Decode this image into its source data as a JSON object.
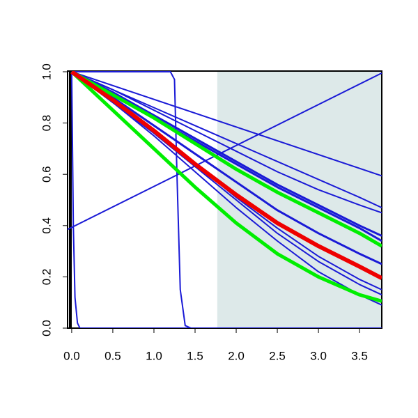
{
  "chart_data": {
    "type": "line",
    "xlim": [
      -0.05,
      3.77
    ],
    "ylim": [
      0,
      1
    ],
    "xticks": [
      {
        "value": 0,
        "label": "0.0"
      },
      0.5,
      {
        "value": 1,
        "label": "1.0"
      },
      1.5,
      {
        "value": 2,
        "label": "2.0"
      },
      2.5,
      {
        "value": 3,
        "label": "3.0"
      },
      3.5
    ],
    "yticks": [
      {
        "value": 0,
        "label": "0.0"
      },
      0.2,
      0.4,
      0.6,
      0.8,
      {
        "value": 1,
        "label": "1.0"
      }
    ],
    "highlight_xrange": [
      1.77,
      3.77
    ],
    "highlight_color": "#dde9e9",
    "series": [
      {
        "color": "#1a1ad6",
        "width": 2,
        "x": [
          0,
          1.2,
          1.25,
          1.28,
          1.32,
          1.38,
          1.45,
          3.77
        ],
        "values": [
          1,
          1,
          0.97,
          0.6,
          0.15,
          0.01,
          0,
          0
        ]
      },
      {
        "color": "#1a1ad6",
        "width": 2,
        "x": [
          0,
          0.01,
          0.02,
          0.04,
          0.07,
          0.1,
          3.77
        ],
        "values": [
          1,
          0.7,
          0.4,
          0.12,
          0.02,
          0,
          0
        ]
      },
      {
        "color": "#1a1ad6",
        "width": 2,
        "x": [
          -0.05,
          3.77
        ],
        "values": [
          0.385,
          0.995
        ]
      },
      {
        "color": "#1a1ad6",
        "width": 2,
        "x": [
          0,
          3.77
        ],
        "values": [
          1,
          0.594
        ]
      },
      {
        "color": "#1a1ad6",
        "width": 2,
        "x": [
          0,
          0.5,
          1,
          1.5,
          2,
          2.5,
          3,
          3.5,
          3.77
        ],
        "values": [
          1,
          0.93,
          0.86,
          0.79,
          0.72,
          0.65,
          0.58,
          0.51,
          0.47
        ]
      },
      {
        "color": "#1a1ad6",
        "width": 2,
        "x": [
          0,
          0.5,
          1,
          1.5,
          2,
          2.5,
          3,
          3.5,
          3.77
        ],
        "values": [
          1,
          0.93,
          0.85,
          0.77,
          0.69,
          0.61,
          0.54,
          0.48,
          0.45
        ]
      },
      {
        "color": "#1a1ad6",
        "width": 3,
        "x": [
          0,
          0.5,
          1,
          1.5,
          2,
          2.5,
          3,
          3.5,
          3.77
        ],
        "values": [
          1,
          0.92,
          0.83,
          0.74,
          0.65,
          0.56,
          0.48,
          0.4,
          0.36
        ]
      },
      {
        "color": "#1a1ad6",
        "width": 3,
        "x": [
          0,
          0.5,
          1,
          1.5,
          2,
          2.5,
          3,
          3.5,
          3.77
        ],
        "values": [
          1,
          0.91,
          0.82,
          0.73,
          0.64,
          0.55,
          0.47,
          0.39,
          0.34
        ]
      },
      {
        "color": "#1a1ad6",
        "width": 3,
        "x": [
          0,
          0.5,
          1,
          1.5,
          2,
          2.5,
          3,
          3.5,
          3.77
        ],
        "values": [
          1,
          0.9,
          0.79,
          0.68,
          0.57,
          0.46,
          0.37,
          0.29,
          0.25
        ]
      },
      {
        "color": "#1a1ad6",
        "width": 2,
        "x": [
          0,
          0.5,
          1,
          1.5,
          2,
          2.5,
          3,
          3.5,
          3.77
        ],
        "values": [
          1,
          0.89,
          0.77,
          0.64,
          0.51,
          0.39,
          0.28,
          0.19,
          0.15
        ]
      },
      {
        "color": "#1a1ad6",
        "width": 2,
        "x": [
          0,
          0.5,
          1,
          1.5,
          2,
          2.5,
          3,
          3.5,
          3.77
        ],
        "values": [
          1,
          0.88,
          0.76,
          0.63,
          0.5,
          0.37,
          0.26,
          0.17,
          0.13
        ]
      },
      {
        "color": "#1a1ad6",
        "width": 2,
        "x": [
          0,
          0.5,
          1,
          1.5,
          2,
          2.5,
          3,
          3.5,
          3.77
        ],
        "values": [
          1,
          0.88,
          0.75,
          0.61,
          0.47,
          0.34,
          0.22,
          0.13,
          0.09
        ]
      },
      {
        "color": "#00ee00",
        "width": 5,
        "x": [
          0,
          0.5,
          1,
          1.5,
          2,
          2.5,
          3,
          3.5,
          3.77
        ],
        "values": [
          1,
          0.91,
          0.82,
          0.72,
          0.62,
          0.53,
          0.45,
          0.37,
          0.32
        ]
      },
      {
        "color": "#00ee00",
        "width": 5,
        "x": [
          0,
          0.5,
          1,
          1.5,
          2,
          2.5,
          3,
          3.5,
          3.77
        ],
        "values": [
          1,
          0.85,
          0.7,
          0.55,
          0.41,
          0.29,
          0.2,
          0.13,
          0.105
        ]
      },
      {
        "color": "#ee0000",
        "width": 6,
        "x": [
          0,
          0.5,
          1,
          1.5,
          2,
          2.5,
          3,
          3.5,
          3.77
        ],
        "values": [
          1,
          0.89,
          0.77,
          0.64,
          0.52,
          0.41,
          0.32,
          0.24,
          0.195
        ]
      }
    ]
  }
}
